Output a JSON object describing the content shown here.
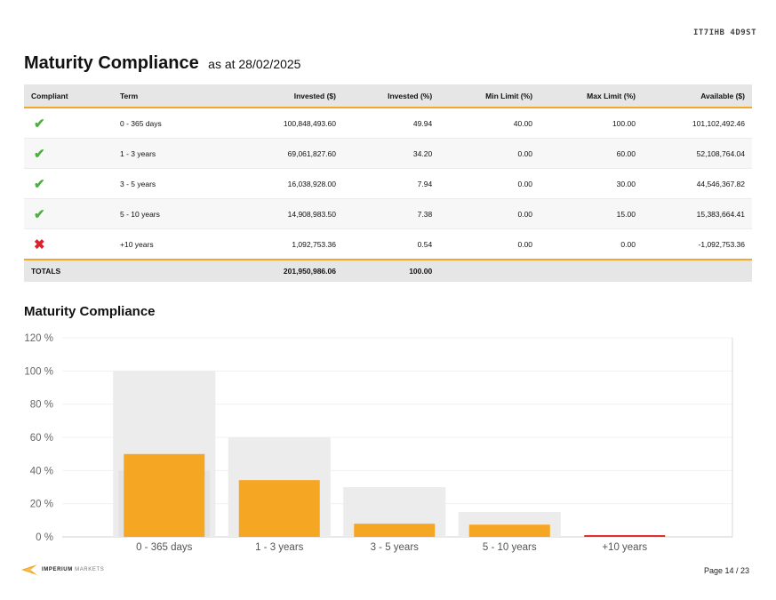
{
  "header": {
    "code": "IT7IHB 4D9ST"
  },
  "title": {
    "main": "Maturity Compliance",
    "subtitle": "as at 28/02/2025"
  },
  "table": {
    "columns": [
      "Compliant",
      "Term",
      "Invested ($)",
      "Invested (%)",
      "Min Limit (%)",
      "Max Limit (%)",
      "Available ($)"
    ],
    "rows": [
      {
        "compliant": "✔",
        "term": "0 - 365 days",
        "invested": "100,848,493.60",
        "invested_pct": "49.94",
        "min": "40.00",
        "max": "100.00",
        "available": "101,102,492.46"
      },
      {
        "compliant": "✔",
        "term": "1 - 3 years",
        "invested": "69,061,827.60",
        "invested_pct": "34.20",
        "min": "0.00",
        "max": "60.00",
        "available": "52,108,764.04"
      },
      {
        "compliant": "✔",
        "term": "3 - 5 years",
        "invested": "16,038,928.00",
        "invested_pct": "7.94",
        "min": "0.00",
        "max": "30.00",
        "available": "44,546,367.82"
      },
      {
        "compliant": "✔",
        "term": "5 - 10 years",
        "invested": "14,908,983.50",
        "invested_pct": "7.38",
        "min": "0.00",
        "max": "15.00",
        "available": "15,383,664.41"
      },
      {
        "compliant": "✖",
        "term": "+10 years",
        "invested": "1,092,753.36",
        "invested_pct": "0.54",
        "min": "0.00",
        "max": "0.00",
        "available": "-1,092,753.36"
      }
    ],
    "totals": {
      "label": "TOTALS",
      "invested": "201,950,986.06",
      "invested_pct": "100.00"
    }
  },
  "chart_title": "Maturity Compliance",
  "chart_data": {
    "type": "bar",
    "categories": [
      "0 - 365 days",
      "1 - 3 years",
      "3 - 5 years",
      "5 - 10 years",
      "+10 years"
    ],
    "series": [
      {
        "values": [
          49.94,
          34.2,
          7.94,
          7.38,
          0.54
        ],
        "color": "#f5a623"
      }
    ],
    "min_limits": [
      40,
      0,
      0,
      0,
      0
    ],
    "max_limits": [
      100,
      60,
      30,
      15,
      0
    ],
    "out_of_limit_color": "#e03131",
    "limit_color": "#ececec",
    "yticks": [
      "0 %",
      "20 %",
      "40 %",
      "60 %",
      "80 %",
      "100 %",
      "120 %"
    ],
    "ylim": [
      0,
      120
    ]
  },
  "footer": {
    "brand_bold": "IMPERIUM",
    "brand_light": "MARKETS",
    "page": "Page 14 / 23"
  }
}
